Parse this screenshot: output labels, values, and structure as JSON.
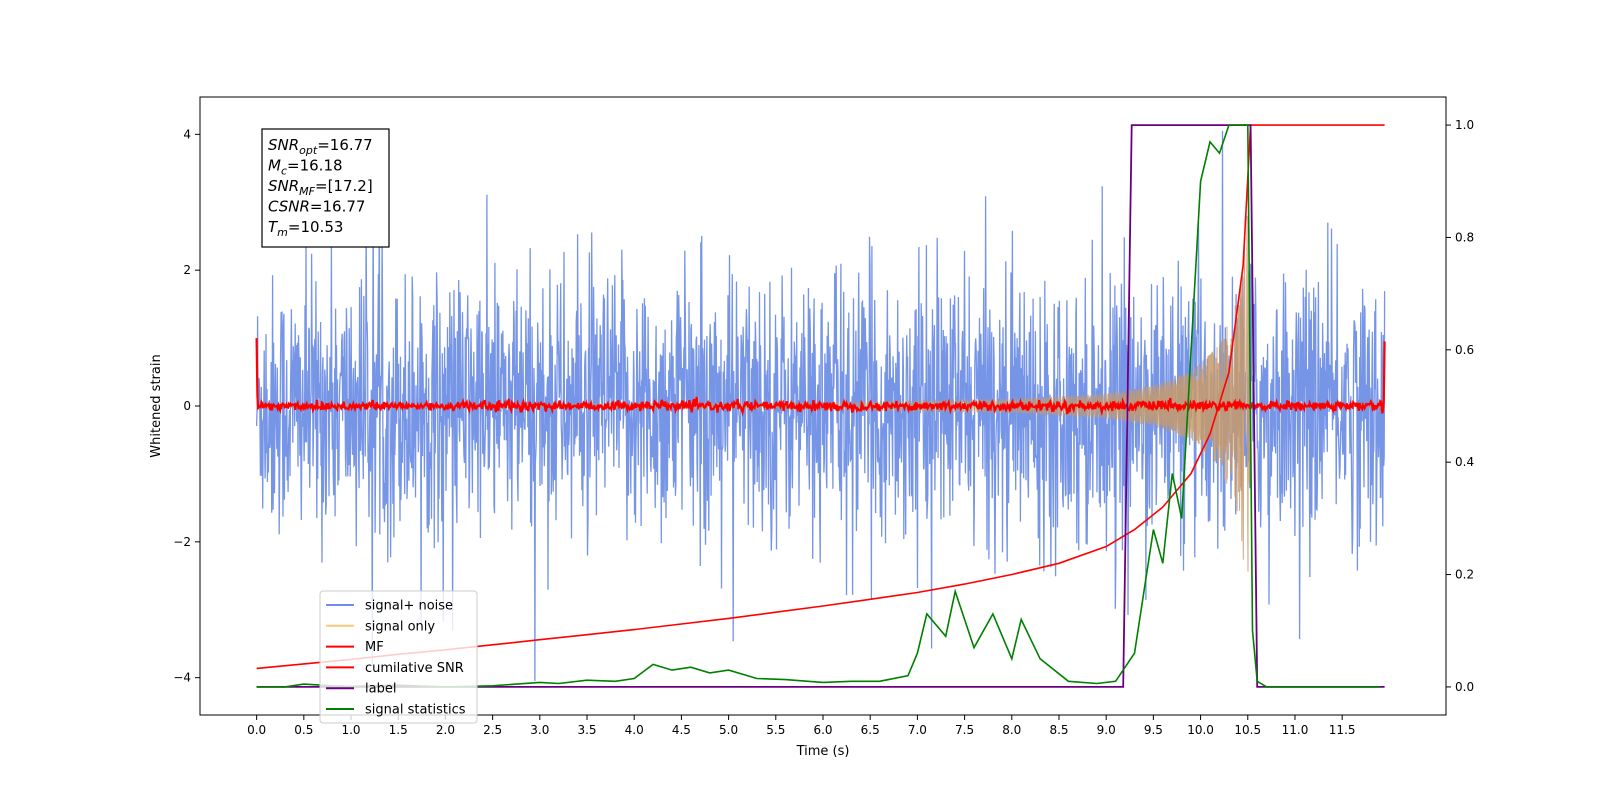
{
  "chart_data": {
    "type": "line",
    "xlabel": "Time (s)",
    "ylabel": "Whitened strain",
    "xlim": [
      -0.6,
      12.6
    ],
    "ylim": [
      -4.55,
      4.55
    ],
    "y2lim": [
      -0.05,
      1.05
    ],
    "x_ticks": [
      "0.0",
      "0.5",
      "1.0",
      "1.5",
      "2.0",
      "2.5",
      "3.0",
      "3.5",
      "4.0",
      "4.5",
      "5.0",
      "5.5",
      "6.0",
      "6.5",
      "7.0",
      "7.5",
      "8.0",
      "8.5",
      "9.0",
      "9.5",
      "10.0",
      "10.5",
      "11.0",
      "11.5"
    ],
    "y_ticks": [
      "−4",
      "−2",
      "0",
      "2",
      "4"
    ],
    "y2_ticks": [
      "0.0",
      "0.2",
      "0.4",
      "0.6",
      "0.8",
      "1.0"
    ],
    "grid": false,
    "legend_position": "lower-left",
    "annotation": {
      "lines": [
        {
          "sym": "SNR",
          "sub": "opt",
          "val": "=16.77"
        },
        {
          "sym": "M",
          "sub": "c",
          "val": "=16.18"
        },
        {
          "sym": "SNR",
          "sub": "MF",
          "val": "=[17.2]"
        },
        {
          "sym": "CSNR",
          "sub": "",
          "val": "=16.77"
        },
        {
          "sym": "T",
          "sub": "m",
          "val": "=10.53"
        }
      ]
    },
    "series": [
      {
        "name": "signal+ noise",
        "color": "#6f8fe6",
        "axis": "left",
        "description_level": "noise amplitude ~±2.2, peaks to ±4"
      },
      {
        "name": "signal only",
        "color": "#f5c97a",
        "axis": "left",
        "chirp_amplitude": [
          [
            0,
            0.02
          ],
          [
            6,
            0.05
          ],
          [
            8,
            0.1
          ],
          [
            9,
            0.18
          ],
          [
            9.5,
            0.3
          ],
          [
            9.9,
            0.5
          ],
          [
            10.2,
            0.9
          ],
          [
            10.4,
            1.6
          ],
          [
            10.5,
            2.9
          ],
          [
            10.53,
            0.0
          ]
        ]
      },
      {
        "name": "MF",
        "color": "#ff0000",
        "axis": "left",
        "level": 0.0
      },
      {
        "name": "cumilative SNR",
        "color": "#ff0000",
        "axis": "right",
        "x": [
          0.0,
          0.5,
          1.0,
          1.5,
          2.0,
          2.5,
          3.0,
          3.5,
          4.0,
          4.5,
          5.0,
          5.5,
          6.0,
          6.5,
          7.0,
          7.5,
          8.0,
          8.5,
          9.0,
          9.3,
          9.6,
          9.9,
          10.1,
          10.3,
          10.45,
          10.53,
          10.6,
          11.0,
          11.5,
          11.95
        ],
        "y": [
          0.033,
          0.041,
          0.049,
          0.058,
          0.066,
          0.075,
          0.084,
          0.093,
          0.102,
          0.112,
          0.122,
          0.133,
          0.144,
          0.156,
          0.168,
          0.183,
          0.2,
          0.22,
          0.25,
          0.28,
          0.32,
          0.38,
          0.45,
          0.56,
          0.75,
          1.0,
          1.0,
          1.0,
          1.0,
          1.0
        ]
      },
      {
        "name": "label",
        "color": "#6a0080",
        "axis": "right",
        "x": [
          0.0,
          9.18,
          9.27,
          10.53,
          10.6,
          11.95
        ],
        "y": [
          0,
          0,
          1,
          1,
          0,
          0
        ]
      },
      {
        "name": "signal statistics",
        "color": "#008000",
        "axis": "right",
        "x": [
          0.0,
          0.3,
          0.5,
          0.8,
          1.0,
          1.5,
          2.0,
          2.5,
          3.0,
          3.2,
          3.5,
          3.8,
          4.0,
          4.2,
          4.4,
          4.6,
          4.8,
          5.0,
          5.3,
          5.6,
          6.0,
          6.3,
          6.6,
          6.9,
          7.0,
          7.1,
          7.3,
          7.4,
          7.6,
          7.7,
          7.8,
          8.0,
          8.1,
          8.3,
          8.6,
          8.9,
          9.1,
          9.3,
          9.5,
          9.6,
          9.7,
          9.8,
          9.9,
          10.0,
          10.1,
          10.2,
          10.3,
          10.5,
          10.55,
          10.6,
          10.7,
          11.0,
          11.5,
          11.9
        ],
        "y": [
          0,
          0,
          0.005,
          0.002,
          0.001,
          0.003,
          0.0,
          0.002,
          0.008,
          0.006,
          0.012,
          0.01,
          0.015,
          0.04,
          0.03,
          0.035,
          0.025,
          0.03,
          0.015,
          0.013,
          0.008,
          0.01,
          0.01,
          0.02,
          0.06,
          0.13,
          0.09,
          0.17,
          0.07,
          0.1,
          0.13,
          0.05,
          0.12,
          0.05,
          0.01,
          0.006,
          0.01,
          0.06,
          0.28,
          0.22,
          0.38,
          0.3,
          0.6,
          0.9,
          0.97,
          0.95,
          1.0,
          1.0,
          0.1,
          0.01,
          0.0,
          0.0,
          0.0,
          0.0
        ]
      }
    ]
  }
}
